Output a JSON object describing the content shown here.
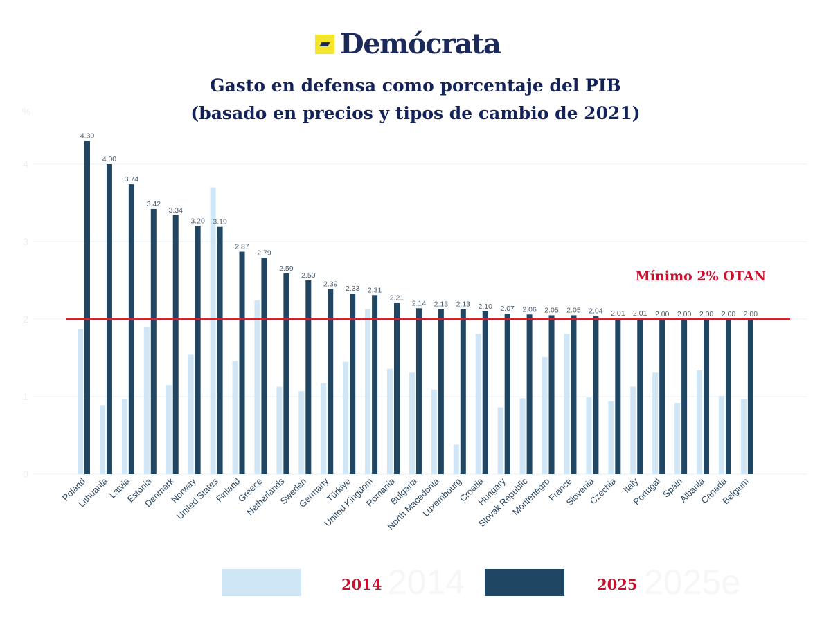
{
  "brand": {
    "name": "Demócrata",
    "logo_color": "#f2e52a",
    "text_color": "#1c2a5a"
  },
  "title": {
    "line1": "Gasto en defensa como porcentaje del PIB",
    "line2": "(basado en precios y tipos de cambio de 2021)"
  },
  "chart_data": {
    "type": "bar",
    "title": "Gasto en defensa como porcentaje del PIB (basado en precios y tipos de cambio de 2021)",
    "ylabel": "%",
    "ylim": [
      0,
      4.4
    ],
    "yticks": [
      "0",
      "1",
      "2",
      "3",
      "4"
    ],
    "grid": true,
    "categories": [
      "Poland",
      "Lithuania",
      "Latvia",
      "Estonia",
      "Denmark",
      "Norway",
      "United States",
      "Finland",
      "Greece",
      "Netherlands",
      "Sweden",
      "Germany",
      "Türkiye",
      "United Kingdom",
      "Romania",
      "Bulgaria",
      "North Macedonia",
      "Luxembourg",
      "Croatia",
      "Hungary",
      "Slovak Republic",
      "Montenegro",
      "France",
      "Slovenia",
      "Czechia",
      "Italy",
      "Portugal",
      "Spain",
      "Albania",
      "Canada",
      "Belgium"
    ],
    "series": [
      {
        "name": "2014",
        "color": "#cfe6f7",
        "values": [
          1.87,
          0.89,
          0.97,
          1.9,
          1.15,
          1.54,
          3.7,
          1.46,
          2.24,
          1.13,
          1.07,
          1.17,
          1.45,
          2.13,
          1.36,
          1.31,
          1.09,
          0.38,
          1.81,
          0.86,
          0.98,
          1.51,
          1.81,
          0.99,
          0.94,
          1.13,
          1.31,
          0.92,
          1.34,
          1.01,
          0.97
        ]
      },
      {
        "name": "2025",
        "color": "#1f4662",
        "values": [
          4.3,
          4.0,
          3.74,
          3.42,
          3.34,
          3.2,
          3.19,
          2.87,
          2.79,
          2.59,
          2.5,
          2.39,
          2.33,
          2.31,
          2.21,
          2.14,
          2.13,
          2.13,
          2.1,
          2.07,
          2.06,
          2.05,
          2.05,
          2.04,
          2.01,
          2.01,
          2.0,
          2.0,
          2.0,
          2.0,
          2.0
        ],
        "labels": [
          "4.30",
          "4.00",
          "3.74",
          "3.42",
          "3.34",
          "3.20",
          "3.19",
          "2.87",
          "2.79",
          "2.59",
          "2.50",
          "2.39",
          "2.33",
          "2.31",
          "2.21",
          "2.14",
          "2.13",
          "2.13",
          "2.10",
          "2.07",
          "2.06",
          "2.05",
          "2.05",
          "2.04",
          "2.01",
          "2.01",
          "2.00",
          "2.00",
          "2.00",
          "2.00",
          "2.00"
        ]
      }
    ],
    "reference_line": {
      "value": 2,
      "label": "Mínimo 2%  OTAN",
      "color": "#e31b23"
    },
    "legend": {
      "placement": "bottom",
      "entries": [
        "2014",
        "2025"
      ],
      "ghost_entries": [
        "2014",
        "2025e"
      ]
    }
  }
}
